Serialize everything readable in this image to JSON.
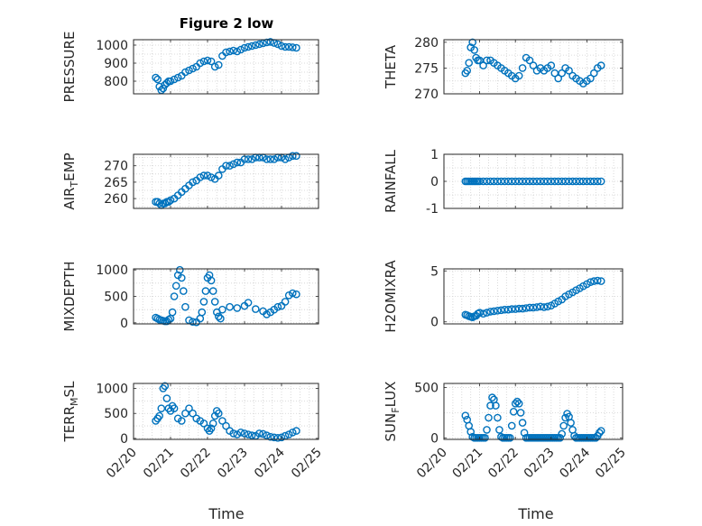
{
  "title": "Figure 2 low",
  "x_axis_label": "Time",
  "marker_color": "#0072bd",
  "chart_data": [
    {
      "type": "scatter",
      "ylabel": "PRESSURE",
      "ylabel_base": "PRESSURE",
      "ylim": [
        730,
        1030
      ],
      "yticks": [
        800,
        900,
        1000
      ],
      "xlim": [
        0,
        5
      ],
      "xticks": [
        0,
        1,
        2,
        3,
        4,
        5
      ],
      "xticklabels": [
        "02/20",
        "02/21",
        "02/22",
        "02/23",
        "02/24",
        "02/25"
      ],
      "x": [
        0.6,
        0.65,
        0.7,
        0.75,
        0.8,
        0.85,
        0.9,
        0.95,
        1.0,
        1.1,
        1.2,
        1.3,
        1.4,
        1.5,
        1.6,
        1.7,
        1.8,
        1.9,
        2.0,
        2.1,
        2.2,
        2.3,
        2.4,
        2.5,
        2.6,
        2.7,
        2.8,
        2.9,
        3.0,
        3.1,
        3.2,
        3.3,
        3.4,
        3.5,
        3.6,
        3.7,
        3.8,
        3.9,
        4.0,
        4.1,
        4.2,
        4.3,
        4.4
      ],
      "y": [
        820,
        810,
        770,
        750,
        760,
        780,
        790,
        800,
        800,
        810,
        820,
        830,
        850,
        860,
        870,
        880,
        900,
        910,
        915,
        910,
        880,
        890,
        940,
        960,
        965,
        970,
        965,
        975,
        985,
        990,
        995,
        1000,
        1005,
        1010,
        1015,
        1018,
        1012,
        1005,
        995,
        990,
        990,
        988,
        985
      ]
    },
    {
      "type": "scatter",
      "ylabel": "THETA",
      "ylabel_base": "THETA",
      "ylim": [
        270,
        280.5
      ],
      "yticks": [
        270,
        275,
        280
      ],
      "xlim": [
        0,
        5
      ],
      "xticks": [
        0,
        1,
        2,
        3,
        4,
        5
      ],
      "xticklabels": [
        "02/20",
        "02/21",
        "02/22",
        "02/23",
        "02/24",
        "02/25"
      ],
      "x": [
        0.6,
        0.65,
        0.7,
        0.75,
        0.8,
        0.85,
        0.9,
        0.95,
        1.0,
        1.1,
        1.2,
        1.3,
        1.4,
        1.5,
        1.6,
        1.7,
        1.8,
        1.9,
        2.0,
        2.1,
        2.2,
        2.3,
        2.4,
        2.5,
        2.6,
        2.7,
        2.8,
        2.9,
        3.0,
        3.1,
        3.2,
        3.3,
        3.4,
        3.5,
        3.6,
        3.7,
        3.8,
        3.9,
        4.0,
        4.1,
        4.2,
        4.3,
        4.4
      ],
      "y": [
        274,
        274.5,
        276,
        279,
        280,
        278.5,
        277,
        276.5,
        276.5,
        275.5,
        276.5,
        276.5,
        276,
        275.5,
        275,
        274.5,
        274,
        273.5,
        273,
        273.5,
        275,
        277,
        276.5,
        275.5,
        274.5,
        275,
        274.5,
        275,
        275.5,
        274,
        273,
        274,
        275,
        274.5,
        273.5,
        273,
        272.5,
        272,
        272.5,
        273,
        274,
        275,
        275.5
      ]
    },
    {
      "type": "scatter",
      "ylabel": "AIR_TEMP",
      "ylabel_base": "AIR",
      "ylabel_sub": "T",
      "ylabel_rest": "EMP",
      "ylim": [
        257,
        273.5
      ],
      "yticks": [
        260,
        265,
        270
      ],
      "xlim": [
        0,
        5
      ],
      "xticks": [
        0,
        1,
        2,
        3,
        4,
        5
      ],
      "xticklabels": [
        "02/20",
        "02/21",
        "02/22",
        "02/23",
        "02/24",
        "02/25"
      ],
      "x": [
        0.6,
        0.65,
        0.7,
        0.75,
        0.8,
        0.85,
        0.9,
        0.95,
        1.0,
        1.1,
        1.2,
        1.3,
        1.4,
        1.5,
        1.6,
        1.7,
        1.8,
        1.9,
        2.0,
        2.1,
        2.2,
        2.3,
        2.4,
        2.5,
        2.6,
        2.7,
        2.8,
        2.9,
        3.0,
        3.1,
        3.2,
        3.3,
        3.4,
        3.5,
        3.6,
        3.7,
        3.8,
        3.9,
        4.0,
        4.1,
        4.2,
        4.3,
        4.4
      ],
      "y": [
        259,
        259,
        258.5,
        258,
        258.5,
        258.5,
        259,
        259,
        259.5,
        260,
        261,
        262,
        263,
        264,
        265,
        265.5,
        266.5,
        267,
        267,
        266.5,
        266,
        267,
        269,
        270,
        270,
        270.5,
        271,
        271,
        272,
        272,
        272,
        272.5,
        272.5,
        272.5,
        272,
        272,
        272,
        272.5,
        272.5,
        272,
        272.5,
        273,
        273
      ]
    },
    {
      "type": "scatter",
      "ylabel": "RAINFALL",
      "ylabel_base": "RAINFALL",
      "ylim": [
        -1,
        1
      ],
      "yticks": [
        -1,
        0,
        1
      ],
      "xlim": [
        0,
        5
      ],
      "xticks": [
        0,
        1,
        2,
        3,
        4,
        5
      ],
      "xticklabels": [
        "02/20",
        "02/21",
        "02/22",
        "02/23",
        "02/24",
        "02/25"
      ],
      "x": [
        0.6,
        0.65,
        0.7,
        0.75,
        0.8,
        0.85,
        0.9,
        0.95,
        1.0,
        1.1,
        1.2,
        1.3,
        1.4,
        1.5,
        1.6,
        1.7,
        1.8,
        1.9,
        2.0,
        2.1,
        2.2,
        2.3,
        2.4,
        2.5,
        2.6,
        2.7,
        2.8,
        2.9,
        3.0,
        3.1,
        3.2,
        3.3,
        3.4,
        3.5,
        3.6,
        3.7,
        3.8,
        3.9,
        4.0,
        4.1,
        4.2,
        4.3,
        4.4
      ],
      "y": [
        0,
        0,
        0,
        0,
        0,
        0,
        0,
        0,
        0,
        0,
        0,
        0,
        0,
        0,
        0,
        0,
        0,
        0,
        0,
        0,
        0,
        0,
        0,
        0,
        0,
        0,
        0,
        0,
        0,
        0,
        0,
        0,
        0,
        0,
        0,
        0,
        0,
        0,
        0,
        0,
        0,
        0,
        0
      ]
    },
    {
      "type": "scatter",
      "ylabel": "MIXDEPTH",
      "ylabel_base": "MIXDEPTH",
      "ylim": [
        -20,
        1020
      ],
      "yticks": [
        0,
        500,
        1000
      ],
      "xlim": [
        0,
        5
      ],
      "xticks": [
        0,
        1,
        2,
        3,
        4,
        5
      ],
      "xticklabels": [
        "02/20",
        "02/21",
        "02/22",
        "02/23",
        "02/24",
        "02/25"
      ],
      "x": [
        0.6,
        0.65,
        0.7,
        0.75,
        0.8,
        0.85,
        0.9,
        0.95,
        1.0,
        1.05,
        1.1,
        1.15,
        1.2,
        1.25,
        1.3,
        1.35,
        1.4,
        1.5,
        1.6,
        1.7,
        1.8,
        1.85,
        1.9,
        1.95,
        2.0,
        2.05,
        2.1,
        2.15,
        2.2,
        2.25,
        2.3,
        2.35,
        2.4,
        2.6,
        2.8,
        3.0,
        3.1,
        3.3,
        3.5,
        3.6,
        3.7,
        3.8,
        3.9,
        4.0,
        4.1,
        4.2,
        4.3,
        4.4
      ],
      "y": [
        100,
        80,
        60,
        50,
        40,
        30,
        30,
        60,
        80,
        200,
        500,
        700,
        900,
        1000,
        850,
        600,
        300,
        50,
        20,
        10,
        80,
        200,
        400,
        600,
        850,
        900,
        800,
        600,
        400,
        200,
        120,
        80,
        250,
        300,
        280,
        320,
        380,
        260,
        220,
        160,
        200,
        250,
        300,
        320,
        400,
        520,
        560,
        540
      ]
    },
    {
      "type": "scatter",
      "ylabel": "H2OMIXRA",
      "ylabel_base": "H2OMIXRA",
      "ylim": [
        -0.2,
        5.2
      ],
      "yticks": [
        0,
        5
      ],
      "xlim": [
        0,
        5
      ],
      "xticks": [
        0,
        1,
        2,
        3,
        4,
        5
      ],
      "xticklabels": [
        "02/20",
        "02/21",
        "02/22",
        "02/23",
        "02/24",
        "02/25"
      ],
      "x": [
        0.6,
        0.65,
        0.7,
        0.75,
        0.8,
        0.85,
        0.9,
        0.95,
        1.0,
        1.1,
        1.2,
        1.3,
        1.4,
        1.5,
        1.6,
        1.7,
        1.8,
        1.9,
        2.0,
        2.1,
        2.2,
        2.3,
        2.4,
        2.5,
        2.6,
        2.7,
        2.8,
        2.9,
        3.0,
        3.1,
        3.2,
        3.3,
        3.4,
        3.5,
        3.6,
        3.7,
        3.8,
        3.9,
        4.0,
        4.1,
        4.2,
        4.3,
        4.4
      ],
      "y": [
        0.7,
        0.65,
        0.55,
        0.5,
        0.45,
        0.55,
        0.6,
        0.8,
        0.9,
        0.8,
        0.9,
        1.0,
        1.05,
        1.1,
        1.15,
        1.2,
        1.2,
        1.25,
        1.25,
        1.3,
        1.3,
        1.35,
        1.4,
        1.4,
        1.45,
        1.5,
        1.45,
        1.5,
        1.6,
        1.8,
        2.0,
        2.2,
        2.5,
        2.7,
        2.9,
        3.1,
        3.3,
        3.5,
        3.7,
        3.9,
        4.0,
        4.05,
        4.0
      ]
    },
    {
      "type": "scatter",
      "ylabel": "TERR_MSL",
      "ylabel_base": "TERR",
      "ylabel_sub": "M",
      "ylabel_rest": "SL",
      "ylim": [
        -20,
        1100
      ],
      "yticks": [
        0,
        500,
        1000
      ],
      "xlim": [
        0,
        5
      ],
      "xticks": [
        0,
        1,
        2,
        3,
        4,
        5
      ],
      "xticklabels": [
        "02/20",
        "02/21",
        "02/22",
        "02/23",
        "02/24",
        "02/25"
      ],
      "x": [
        0.6,
        0.65,
        0.7,
        0.75,
        0.8,
        0.85,
        0.9,
        0.95,
        1.0,
        1.05,
        1.1,
        1.2,
        1.3,
        1.4,
        1.5,
        1.6,
        1.7,
        1.8,
        1.9,
        2.0,
        2.05,
        2.1,
        2.15,
        2.2,
        2.25,
        2.3,
        2.4,
        2.5,
        2.6,
        2.7,
        2.8,
        2.9,
        3.0,
        3.1,
        3.2,
        3.3,
        3.4,
        3.5,
        3.6,
        3.7,
        3.8,
        3.9,
        4.0,
        4.1,
        4.2,
        4.3,
        4.4
      ],
      "y": [
        350,
        400,
        450,
        600,
        1000,
        1050,
        800,
        600,
        550,
        650,
        600,
        400,
        350,
        500,
        600,
        500,
        400,
        350,
        300,
        200,
        150,
        200,
        300,
        450,
        550,
        500,
        350,
        250,
        150,
        100,
        80,
        120,
        100,
        80,
        60,
        50,
        100,
        90,
        60,
        30,
        20,
        10,
        20,
        50,
        80,
        120,
        150
      ]
    },
    {
      "type": "scatter",
      "ylabel": "SUN_FLUX",
      "ylabel_base": "SUN",
      "ylabel_sub": "F",
      "ylabel_rest": "LUX",
      "ylim": [
        -15,
        540
      ],
      "yticks": [
        0,
        500
      ],
      "xlim": [
        0,
        5
      ],
      "xticks": [
        0,
        1,
        2,
        3,
        4,
        5
      ],
      "xticklabels": [
        "02/20",
        "02/21",
        "02/22",
        "02/23",
        "02/24",
        "02/25"
      ],
      "x": [
        0.6,
        0.65,
        0.7,
        0.75,
        0.8,
        0.85,
        0.9,
        0.95,
        1.0,
        1.05,
        1.1,
        1.15,
        1.2,
        1.25,
        1.3,
        1.35,
        1.4,
        1.45,
        1.5,
        1.55,
        1.6,
        1.65,
        1.7,
        1.75,
        1.8,
        1.85,
        1.9,
        1.95,
        2.0,
        2.05,
        2.1,
        2.15,
        2.2,
        2.25,
        2.3,
        2.35,
        2.4,
        2.45,
        2.5,
        2.55,
        2.6,
        2.65,
        2.7,
        2.75,
        2.8,
        2.85,
        2.9,
        2.95,
        3.0,
        3.05,
        3.1,
        3.15,
        3.2,
        3.25,
        3.3,
        3.35,
        3.4,
        3.45,
        3.5,
        3.55,
        3.6,
        3.65,
        3.7,
        3.75,
        3.8,
        3.85,
        3.9,
        3.95,
        4.0,
        4.05,
        4.1,
        4.15,
        4.2,
        4.25,
        4.3,
        4.35,
        4.4
      ],
      "y": [
        220,
        180,
        120,
        60,
        10,
        0,
        0,
        0,
        0,
        0,
        0,
        0,
        80,
        200,
        320,
        400,
        380,
        320,
        200,
        80,
        10,
        0,
        0,
        0,
        0,
        0,
        120,
        260,
        340,
        360,
        340,
        250,
        150,
        50,
        0,
        0,
        0,
        0,
        0,
        0,
        0,
        0,
        0,
        0,
        0,
        0,
        0,
        0,
        0,
        0,
        0,
        0,
        0,
        0,
        40,
        120,
        200,
        240,
        210,
        150,
        80,
        20,
        0,
        0,
        0,
        0,
        0,
        0,
        0,
        0,
        0,
        0,
        0,
        0,
        20,
        50,
        70
      ]
    }
  ]
}
